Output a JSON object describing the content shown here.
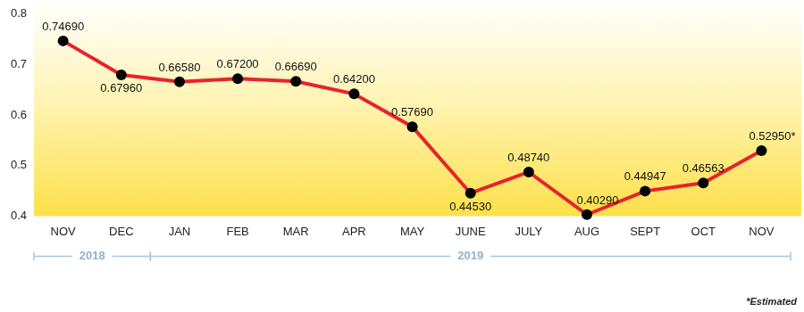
{
  "chart_data": {
    "type": "line",
    "categories": [
      "NOV",
      "DEC",
      "JAN",
      "FEB",
      "MAR",
      "APR",
      "MAY",
      "JUNE",
      "JULY",
      "AUG",
      "SEPT",
      "OCT",
      "NOV"
    ],
    "values": [
      0.7469,
      0.6796,
      0.6658,
      0.672,
      0.6669,
      0.642,
      0.5769,
      0.4453,
      0.4874,
      0.4029,
      0.44947,
      0.46563,
      0.5295
    ],
    "value_labels": [
      "0.74690",
      "0.67960",
      "0.66580",
      "0.67200",
      "0.66690",
      "0.64200",
      "0.57690",
      "0.44530",
      "0.48740",
      "0.40290",
      "0.44947",
      "0.46563",
      "0.52950*"
    ],
    "color": "#e8232b",
    "marker": "circle",
    "ylim": [
      0.4,
      0.8
    ],
    "yticks": [
      0.4,
      0.5,
      0.6,
      0.7,
      0.8
    ],
    "grid": false,
    "data_labels": true,
    "x_groups": [
      {
        "label": "2018",
        "count": 2
      },
      {
        "label": "2019",
        "count": 11
      }
    ],
    "note": "*Estimated"
  }
}
